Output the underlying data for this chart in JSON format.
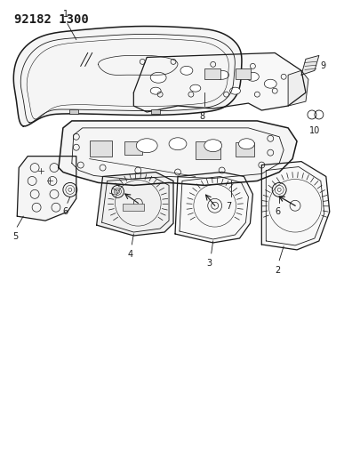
{
  "title_text": "92182 1300",
  "bg_color": "#ffffff",
  "line_color": "#1a1a1a",
  "fig_width": 3.96,
  "fig_height": 5.33,
  "dpi": 100,
  "label_fontsize": 7,
  "title_fontsize": 10
}
